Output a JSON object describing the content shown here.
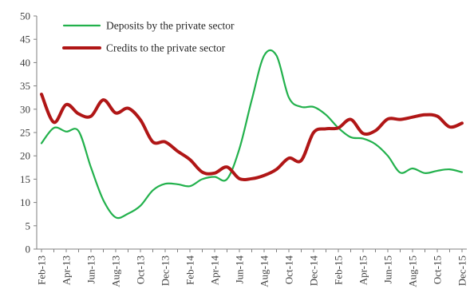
{
  "chart_data": {
    "type": "line",
    "title": "",
    "xlabel": "",
    "ylabel": "",
    "ylim": [
      0,
      50
    ],
    "yticks": [
      "0",
      "5",
      "10",
      "15",
      "20",
      "25",
      "30",
      "35",
      "40",
      "45",
      "50"
    ],
    "grid": false,
    "legend_position": "top-left",
    "x": [
      "Feb-13",
      "Mar-13",
      "Apr-13",
      "May-13",
      "Jun-13",
      "Jul-13",
      "Aug-13",
      "Sep-13",
      "Oct-13",
      "Nov-13",
      "Dec-13",
      "Jan-14",
      "Feb-14",
      "Mar-14",
      "Apr-14",
      "May-14",
      "Jun-14",
      "Jul-14",
      "Aug-14",
      "Sep-14",
      "Oct-14",
      "Nov-14",
      "Dec-14",
      "Jan-15",
      "Feb-15",
      "Mar-15",
      "Apr-15",
      "May-15",
      "Jun-15",
      "Jul-15",
      "Aug-15",
      "Sep-15",
      "Oct-15",
      "Nov-15",
      "Dec-15"
    ],
    "xtick_labels": [
      "Feb-13",
      "Apr-13",
      "Jun-13",
      "Aug-13",
      "Oct-13",
      "Dec-13",
      "Feb-14",
      "Apr-14",
      "Jun-14",
      "Aug-14",
      "Oct-14",
      "Dec-14",
      "Feb-15",
      "Apr-15",
      "Jun-15",
      "Aug-15",
      "Oct-15",
      "Dec-15"
    ],
    "series": [
      {
        "name": "Deposits by the private sector",
        "color": "#22b14c",
        "values": [
          22.7,
          26.0,
          25.2,
          25.3,
          17.5,
          10.5,
          6.8,
          7.6,
          9.3,
          12.6,
          14.0,
          13.9,
          13.5,
          15.0,
          15.5,
          15.0,
          21.5,
          32.0,
          41.5,
          41.5,
          32.5,
          30.5,
          30.5,
          28.8,
          26.0,
          24.0,
          23.7,
          22.5,
          20.0,
          16.4,
          17.3,
          16.3,
          16.8,
          17.1,
          16.5
        ]
      },
      {
        "name": "Credits to the private sector",
        "color": "#b01616",
        "values": [
          33.2,
          27.2,
          31.0,
          29.0,
          28.5,
          32.0,
          29.2,
          30.2,
          27.7,
          23.0,
          23.0,
          21.0,
          19.2,
          16.5,
          16.3,
          17.6,
          15.1,
          15.1,
          15.8,
          17.1,
          19.5,
          19.0,
          25.0,
          25.8,
          26.0,
          27.8,
          24.8,
          25.4,
          27.9,
          27.8,
          28.3,
          28.8,
          28.5,
          26.2,
          27.0
        ]
      }
    ]
  }
}
